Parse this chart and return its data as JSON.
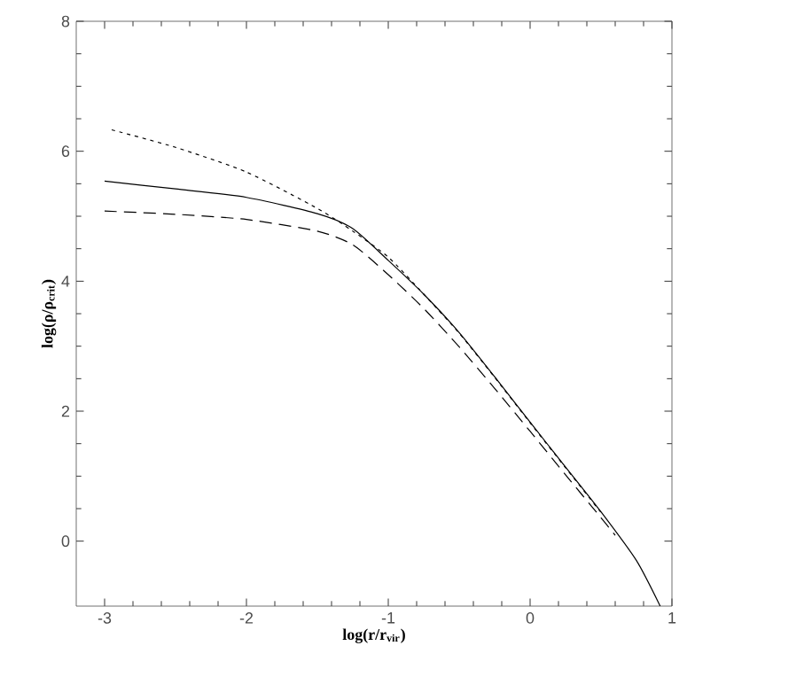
{
  "chart_data": {
    "type": "line",
    "xlabel": "log(r/r$_{vir}$)",
    "ylabel": "log(ρ/ρ$_{crit}$)",
    "xlim": [
      -3.2,
      1
    ],
    "ylim": [
      -1,
      8
    ],
    "xticks": [
      -3,
      -2,
      -1,
      0,
      1
    ],
    "yticks": [
      0,
      2,
      4,
      6,
      8
    ],
    "grid": false,
    "marker": "none",
    "series": [
      {
        "color": "#000000",
        "line_style": "solid",
        "x": [
          -3,
          -2.5,
          -2,
          -1.5,
          -1.25,
          -1,
          -0.75,
          -0.5,
          -0.25,
          0,
          0.25,
          0.5,
          0.75,
          0.917
        ],
        "values": [
          5.54,
          5.42,
          5.29,
          5.04,
          4.81,
          4.32,
          3.8,
          3.21,
          2.53,
          1.83,
          1.14,
          0.45,
          -0.3,
          -1.0
        ]
      },
      {
        "color": "#000000",
        "line_style": "dotted",
        "x": [
          -2.95,
          -2.5,
          -2,
          -1.5,
          -1.25,
          -1,
          -0.75,
          -0.5,
          -0.25,
          0,
          0.25,
          0.5
        ],
        "values": [
          6.33,
          6.06,
          5.68,
          5.12,
          4.77,
          4.37,
          3.8,
          3.2,
          2.52,
          1.82,
          1.13,
          0.44
        ]
      },
      {
        "color": "#000000",
        "line_style": "dashed",
        "x": [
          -3,
          -2.5,
          -2,
          -1.5,
          -1.25,
          -1,
          -0.75,
          -0.5,
          -0.25,
          0,
          0.25,
          0.5,
          0.6
        ],
        "values": [
          5.08,
          5.03,
          4.95,
          4.77,
          4.56,
          4.1,
          3.58,
          2.99,
          2.35,
          1.69,
          1.02,
          0.36,
          0.09
        ]
      }
    ]
  }
}
